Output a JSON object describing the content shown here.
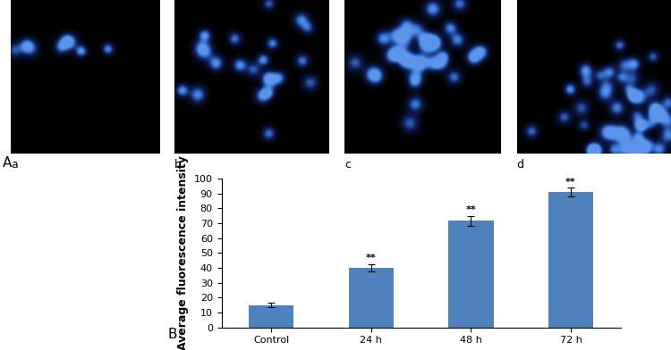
{
  "panel_labels": [
    "A",
    "B"
  ],
  "image_labels": [
    "a",
    "b",
    "c",
    "d"
  ],
  "chart_data": {
    "type": "bar",
    "y_label": "Average fluorescence intensity",
    "categories": [
      "Control",
      "24 h",
      "48 h",
      "72 h"
    ],
    "values": [
      15,
      40,
      71.5,
      91
    ],
    "errors": [
      1.5,
      2.5,
      3.5,
      3
    ],
    "significance": [
      null,
      "**",
      "**",
      "**"
    ],
    "color": "#4f81bd",
    "ylim": [
      0,
      100
    ],
    "yticks": [
      0,
      10,
      20,
      30,
      40,
      50,
      60,
      70,
      80,
      90,
      100
    ],
    "grid": false
  }
}
